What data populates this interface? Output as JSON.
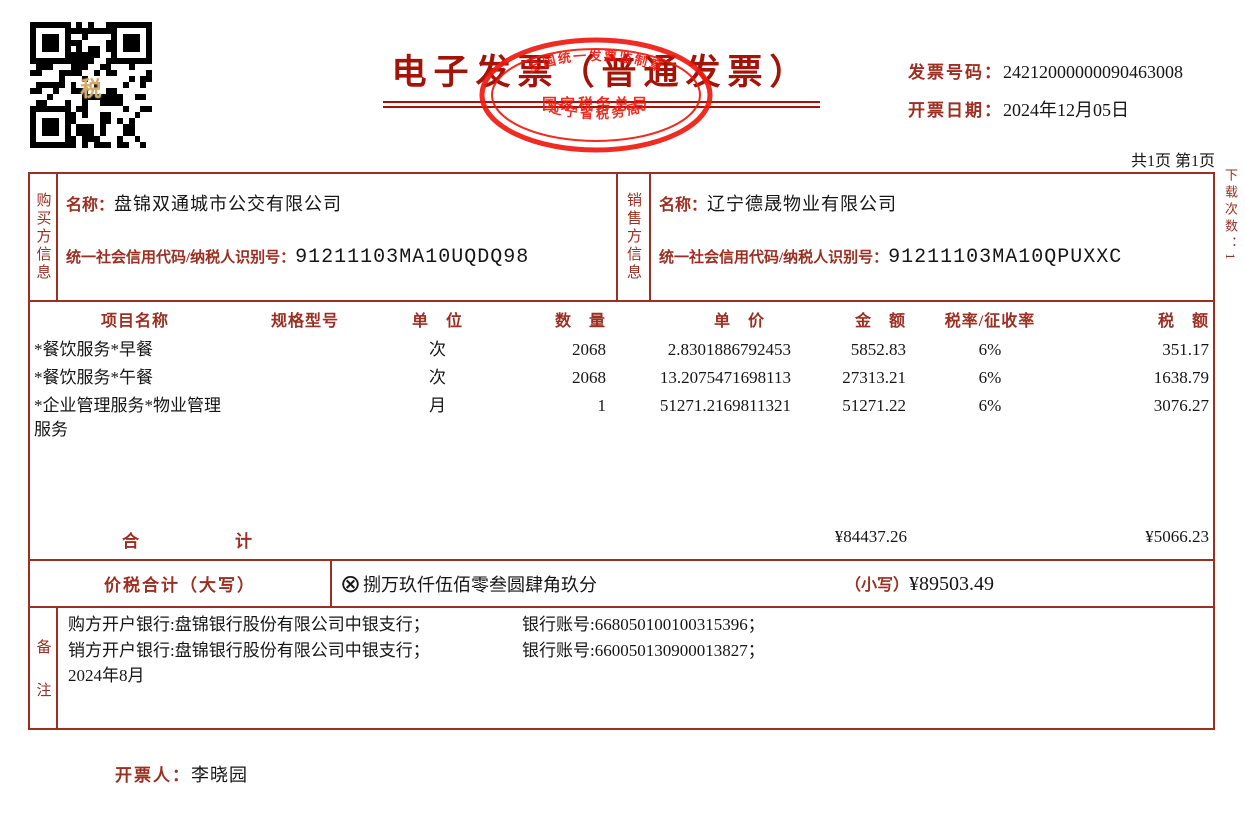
{
  "header": {
    "title": "电子发票（普通发票）",
    "invoice_no_label": "发票号码：",
    "invoice_no": "24212000000090463008",
    "date_label": "开票日期：",
    "date": "2024年12月05日",
    "page_info": "共1页 第1页",
    "download_count": "下载次数：1",
    "qr_center_label": "税",
    "stamp": {
      "arc_top": "全国统一发票监制章",
      "center": "国家税务总局",
      "arc_bottom": "辽宁省税务局"
    }
  },
  "buyer": {
    "section_label": "购买方信息",
    "name_label": "名称：",
    "name": "盘锦双通城市公交有限公司",
    "tax_id_label": "统一社会信用代码/纳税人识别号：",
    "tax_id": "91211103MA10UQDQ98"
  },
  "seller": {
    "section_label": "销售方信息",
    "name_label": "名称：",
    "name": "辽宁德晟物业有限公司",
    "tax_id_label": "统一社会信用代码/纳税人识别号：",
    "tax_id": "91211103MA10QPUXXC"
  },
  "items_table": {
    "headers": [
      "项目名称",
      "规格型号",
      "单　位",
      "数　量",
      "单　价",
      "金　额",
      "税率/征收率",
      "税　额"
    ],
    "rows": [
      {
        "name": "*餐饮服务*早餐",
        "spec": "",
        "unit": "次",
        "qty": "2068",
        "unit_price": "2.8301886792453",
        "amount": "5852.83",
        "tax_rate": "6%",
        "tax": "351.17"
      },
      {
        "name": "*餐饮服务*午餐",
        "spec": "",
        "unit": "次",
        "qty": "2068",
        "unit_price": "13.2075471698113",
        "amount": "27313.21",
        "tax_rate": "6%",
        "tax": "1638.79"
      },
      {
        "name": "*企业管理服务*物业管理服务",
        "spec": "",
        "unit": "月",
        "qty": "1",
        "unit_price": "51271.2169811321",
        "amount": "51271.22",
        "tax_rate": "6%",
        "tax": "3076.27"
      }
    ]
  },
  "totals": {
    "label": "合计",
    "amount": "¥84437.26",
    "tax": "¥5066.23"
  },
  "grand_total": {
    "label": "价税合计（大写）",
    "circle_symbol": "⊗",
    "amount_words": "捌万玖仟伍佰零叁圆肆角玖分",
    "small_label": "（小写）",
    "amount_figures": "¥89503.49"
  },
  "remarks": {
    "section_label": "备注",
    "lines": [
      {
        "left": "购方开户银行:盘锦银行股份有限公司中银支行；",
        "right": "银行账号:668050100100315396；"
      },
      {
        "left": "销方开户银行:盘锦银行股份有限公司中银支行；",
        "right": "银行账号:660050130900013827；"
      },
      {
        "left": "2024年8月",
        "right": ""
      }
    ]
  },
  "footer": {
    "issuer_label": "开票人：",
    "issuer": "李晓园"
  },
  "colors": {
    "maroon": "#9a2f22",
    "title_red": "#a31408",
    "stamp_red": "#ee1a10",
    "ink": "#161616",
    "qr_gold": "#d4ab68"
  }
}
